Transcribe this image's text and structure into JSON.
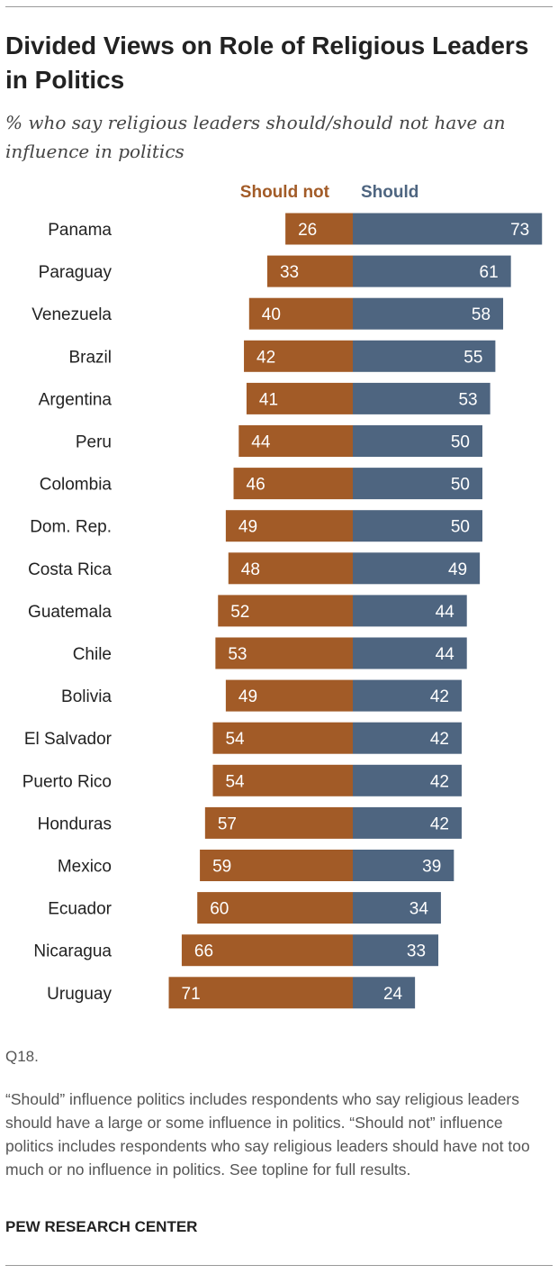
{
  "title": "Divided Views on Role of Religious Leaders in Politics",
  "subtitle": "% who say religious leaders should/should not have an influence in politics",
  "source": "Q18.",
  "note": "“Should” influence politics includes respondents who say religious leaders should have a large or some influence in politics. “Should not” influence politics includes respondents who say religious leaders should have not too much or no influence in politics. See topline for full results.",
  "credit": "PEW RESEARCH CENTER",
  "colors": {
    "should_not": "#a25b27",
    "should": "#4e6580",
    "label_text": "#ffffff"
  },
  "chart_data": {
    "type": "bar",
    "orientation": "horizontal-diverging",
    "categories": [
      "Panama",
      "Paraguay",
      "Venezuela",
      "Brazil",
      "Argentina",
      "Peru",
      "Colombia",
      "Dom. Rep.",
      "Costa Rica",
      "Guatemala",
      "Chile",
      "Bolivia",
      "El Salvador",
      "Puerto Rico",
      "Honduras",
      "Mexico",
      "Ecuador",
      "Nicaragua",
      "Uruguay"
    ],
    "series": [
      {
        "name": "Should not",
        "values": [
          26,
          33,
          40,
          42,
          41,
          44,
          46,
          49,
          48,
          52,
          53,
          49,
          54,
          54,
          57,
          59,
          60,
          66,
          71
        ]
      },
      {
        "name": "Should",
        "values": [
          73,
          61,
          58,
          55,
          53,
          50,
          50,
          50,
          49,
          44,
          44,
          42,
          42,
          42,
          42,
          39,
          34,
          33,
          24
        ]
      }
    ],
    "legend": "top"
  }
}
